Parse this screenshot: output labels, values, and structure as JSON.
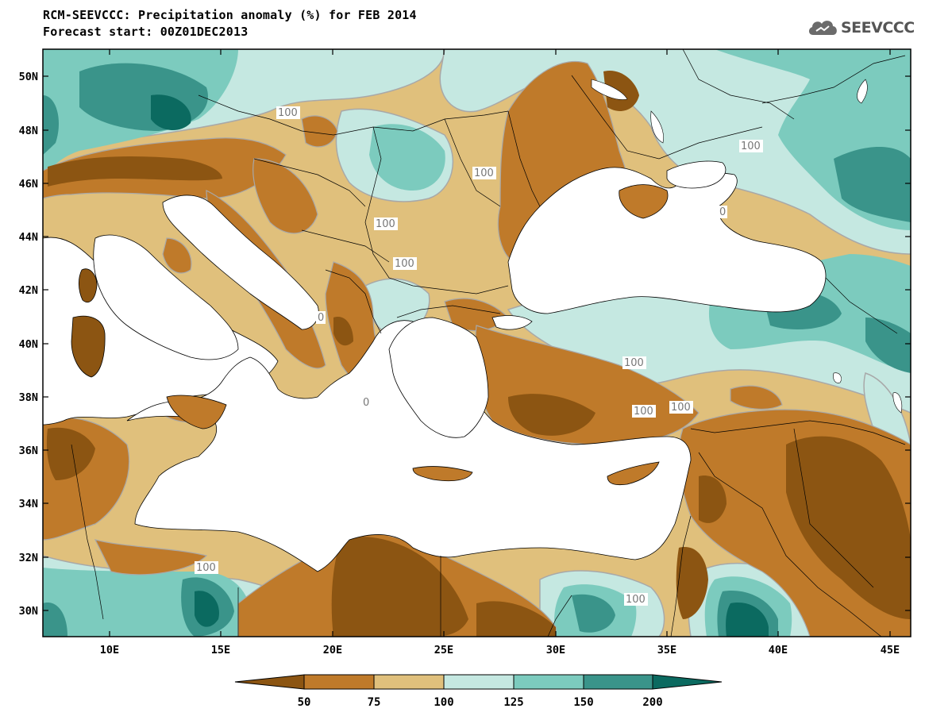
{
  "header": {
    "title": "RCM-SEEVCCC: Precipitation anomaly (%) for FEB 2014",
    "subtitle": "Forecast start: 00Z01DEC2013",
    "logo_text": "SEEVCCC",
    "logo_icon": "cloud-icon"
  },
  "map": {
    "region": "Southeastern Europe / Eastern Mediterranean",
    "lon_range": [
      7,
      46
    ],
    "lat_range": [
      29,
      51
    ],
    "lon_ticks": [
      "10E",
      "15E",
      "20E",
      "25E",
      "30E",
      "35E",
      "40E",
      "45E"
    ],
    "lat_ticks": [
      "50N",
      "48N",
      "46N",
      "44N",
      "42N",
      "40N",
      "38N",
      "36N",
      "34N",
      "32N",
      "30N"
    ],
    "contour_labels": [
      "100",
      "100",
      "100",
      "100",
      "100",
      "100",
      "0",
      "100",
      "100",
      "100",
      "0",
      "100",
      "100"
    ]
  },
  "colorbar": {
    "labels": [
      "50",
      "75",
      "100",
      "125",
      "150",
      "200"
    ],
    "colors": [
      "#8c5512",
      "#bf7a2a",
      "#e0c07c",
      "#c5e8e1",
      "#7ccbbe",
      "#3a948a",
      "#0b6a60"
    ],
    "sea_color": "#ffffff",
    "contour_color": "#a8a8a8"
  }
}
